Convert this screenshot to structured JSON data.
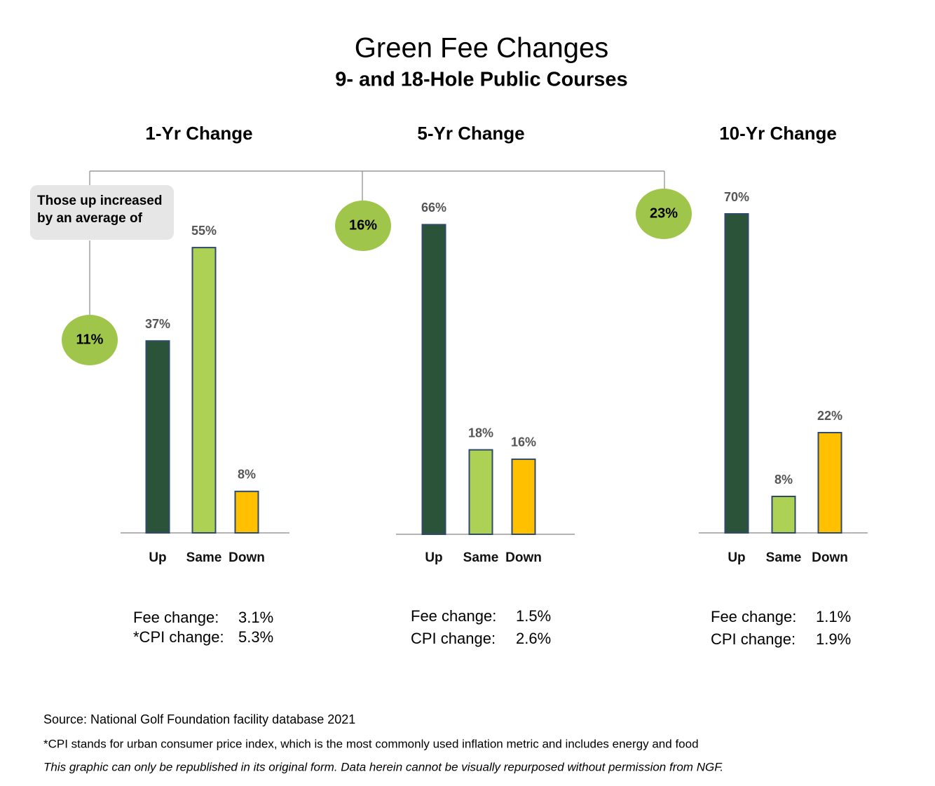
{
  "title": "Green Fee Changes",
  "subtitle": "9- and 18-Hole Public Courses",
  "callout": [
    "Those up increased",
    "by an average of"
  ],
  "chart_data": [
    {
      "type": "bar",
      "title": "1-Yr Change",
      "categories": [
        "Up",
        "Same",
        "Down"
      ],
      "values": [
        37,
        55,
        8
      ],
      "value_labels": [
        "37%",
        "55%",
        "8%"
      ],
      "colors": [
        "#2b5339",
        "#add155",
        "#ffc000"
      ],
      "ylim": [
        0,
        61.5
      ],
      "badge": "11%",
      "stats": [
        {
          "label": "Fee change:",
          "value": "3.1%"
        },
        {
          "label": "*CPI change:",
          "value": "5.3%"
        }
      ]
    },
    {
      "type": "bar",
      "title": "5-Yr Change",
      "categories": [
        "Up",
        "Same",
        "Down"
      ],
      "values": [
        66,
        18,
        16
      ],
      "value_labels": [
        "66%",
        "18%",
        "16%"
      ],
      "colors": [
        "#2b5339",
        "#add155",
        "#ffc000"
      ],
      "ylim": [
        0,
        68
      ],
      "badge": "16%",
      "stats": [
        {
          "label": "Fee change:",
          "value": "1.5%"
        },
        {
          "label": "CPI change:",
          "value": "2.6%"
        }
      ]
    },
    {
      "type": "bar",
      "title": "10-Yr Change",
      "categories": [
        "Up",
        "Same",
        "Down"
      ],
      "values": [
        70,
        8,
        22
      ],
      "value_labels": [
        "70%",
        "8%",
        "22%"
      ],
      "colors": [
        "#2b5339",
        "#add155",
        "#ffc000"
      ],
      "ylim": [
        0,
        70
      ],
      "badge": "23%",
      "stats": [
        {
          "label": "Fee change:",
          "value": "1.1%"
        },
        {
          "label": "CPI change:",
          "value": "1.9%"
        }
      ]
    }
  ],
  "notes": [
    "Source: National Golf Foundation facility database 2021",
    "*CPI stands for urban consumer price index, which is the most commonly used inflation metric and includes energy and food",
    "This graphic can only be republished in its original form. Data herein cannot be visually repurposed without permission from NGF."
  ]
}
